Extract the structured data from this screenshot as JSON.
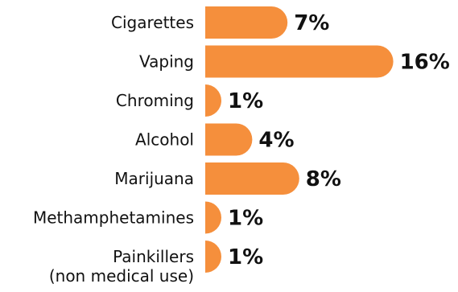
{
  "colors": {
    "bar": "#F58F3C",
    "text": "#111111"
  },
  "chart_data": {
    "type": "bar",
    "orientation": "horizontal",
    "categories": [
      [
        "Cigarettes"
      ],
      [
        "Vaping"
      ],
      [
        "Chroming"
      ],
      [
        "Alcohol"
      ],
      [
        "Marijuana"
      ],
      [
        "Methamphetamines"
      ],
      [
        "Painkillers",
        "(non medical use)"
      ]
    ],
    "values": [
      7,
      16,
      1,
      4,
      8,
      1,
      1
    ],
    "value_labels": [
      "7%",
      "16%",
      "1%",
      "4%",
      "8%",
      "1%",
      "1%"
    ],
    "xlim": [
      0,
      16
    ],
    "grid": false
  }
}
